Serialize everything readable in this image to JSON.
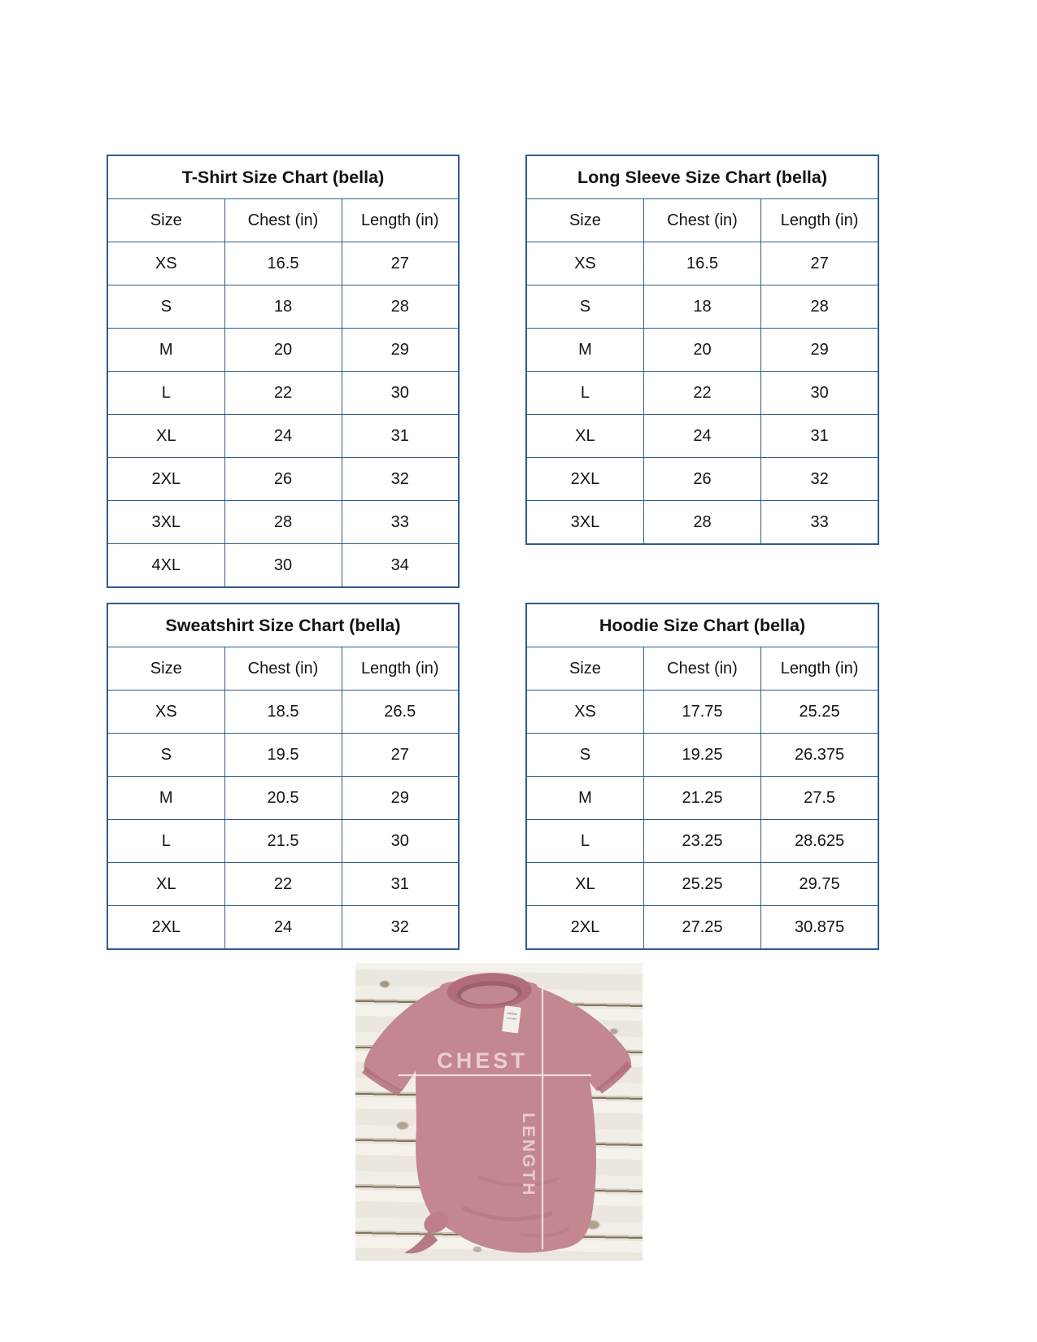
{
  "page": {
    "background": "#ffffff"
  },
  "colors": {
    "table_border": "#2f5c8f",
    "text": "#141414",
    "shirt": "#c38790",
    "shirt_shadow": "#b06d79",
    "wood": "#f1eee7",
    "measure_line": "#f6e7e6"
  },
  "tables": [
    {
      "id": "tshirt",
      "title": "T-Shirt Size Chart  (bella)",
      "columns": [
        "Size",
        "Chest (in)",
        "Length (in)"
      ],
      "rows": [
        [
          "XS",
          "16.5",
          "27"
        ],
        [
          "S",
          "18",
          "28"
        ],
        [
          "M",
          "20",
          "29"
        ],
        [
          "L",
          "22",
          "30"
        ],
        [
          "XL",
          "24",
          "31"
        ],
        [
          "2XL",
          "26",
          "32"
        ],
        [
          "3XL",
          "28",
          "33"
        ],
        [
          "4XL",
          "30",
          "34"
        ]
      ]
    },
    {
      "id": "longsleeve",
      "title": "Long Sleeve Size Chart  (bella)",
      "columns": [
        "Size",
        "Chest (in)",
        "Length (in)"
      ],
      "rows": [
        [
          "XS",
          "16.5",
          "27"
        ],
        [
          "S",
          "18",
          "28"
        ],
        [
          "M",
          "20",
          "29"
        ],
        [
          "L",
          "22",
          "30"
        ],
        [
          "XL",
          "24",
          "31"
        ],
        [
          "2XL",
          "26",
          "32"
        ],
        [
          "3XL",
          "28",
          "33"
        ]
      ]
    },
    {
      "id": "sweatshirt",
      "title": "Sweatshirt Size Chart (bella)",
      "columns": [
        "Size",
        "Chest (in)",
        "Length (in)"
      ],
      "rows": [
        [
          "XS",
          "18.5",
          "26.5"
        ],
        [
          "S",
          "19.5",
          "27"
        ],
        [
          "M",
          "20.5",
          "29"
        ],
        [
          "L",
          "21.5",
          "30"
        ],
        [
          "XL",
          "22",
          "31"
        ],
        [
          "2XL",
          "24",
          "32"
        ]
      ]
    },
    {
      "id": "hoodie",
      "title": "Hoodie Size Chart (bella)",
      "columns": [
        "Size",
        "Chest (in)",
        "Length (in)"
      ],
      "rows": [
        [
          "XS",
          "17.75",
          "25.25"
        ],
        [
          "S",
          "19.25",
          "26.375"
        ],
        [
          "M",
          "21.25",
          "27.5"
        ],
        [
          "L",
          "23.25",
          "28.625"
        ],
        [
          "XL",
          "25.25",
          "29.75"
        ],
        [
          "2XL",
          "27.25",
          "30.875"
        ]
      ]
    }
  ],
  "photo": {
    "chest_label": "CHEST",
    "length_label": "LENGTH"
  }
}
